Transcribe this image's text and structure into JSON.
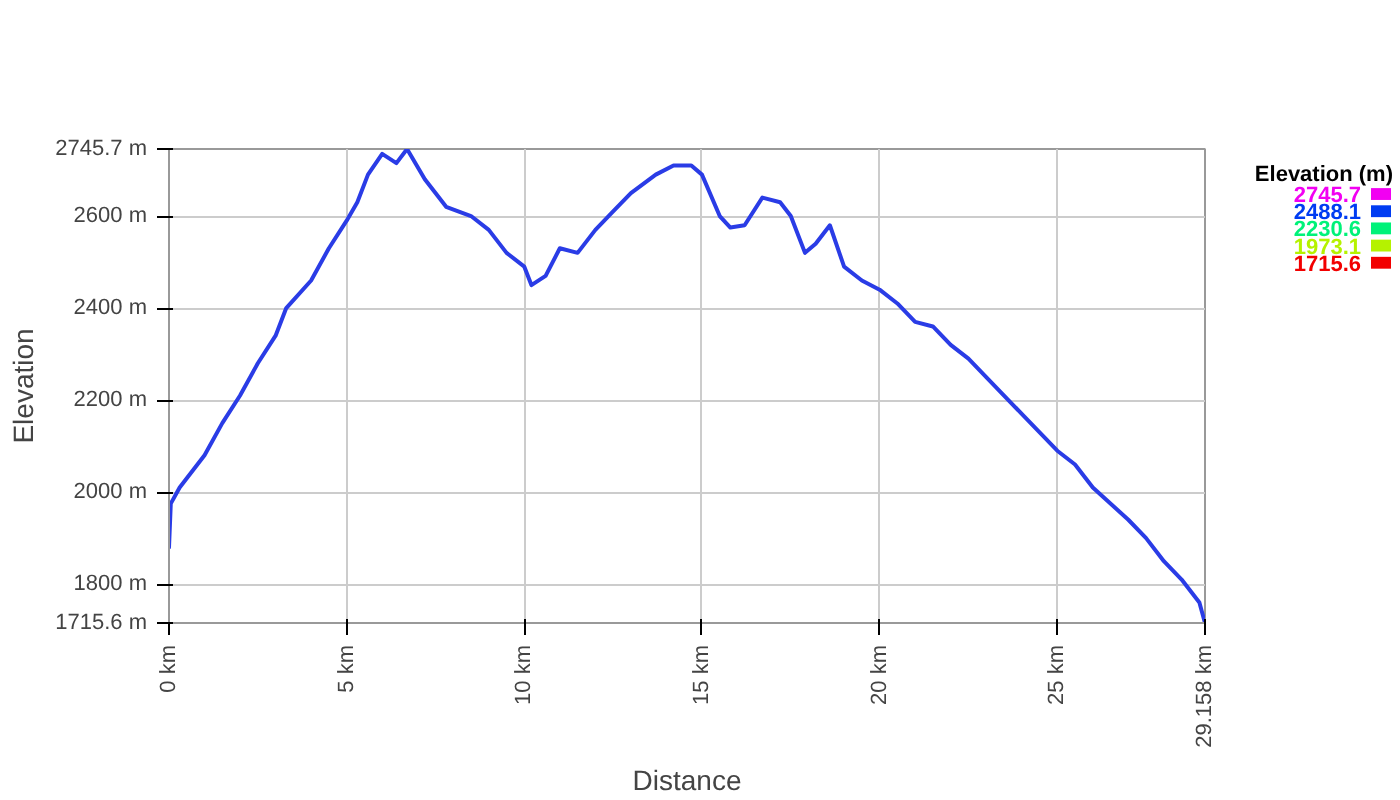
{
  "chart_data": {
    "type": "line",
    "xlabel": "Distance",
    "ylabel": "Elevation",
    "clabel": "Elevation (m)",
    "x": [
      0,
      0.05,
      0.3,
      1,
      1.5,
      2,
      2.5,
      3,
      3.3,
      4,
      4.5,
      5,
      5.3,
      5.6,
      6,
      6.4,
      6.7,
      7.2,
      7.8,
      8.5,
      9,
      9.5,
      10,
      10.2,
      10.6,
      11,
      11.5,
      12,
      12.5,
      13,
      13.7,
      14.2,
      14.7,
      15,
      15.5,
      15.8,
      16.2,
      16.7,
      17.2,
      17.5,
      17.9,
      18.2,
      18.6,
      19,
      19.5,
      20,
      20.5,
      21,
      21.5,
      22,
      22.5,
      23,
      24,
      25,
      25.5,
      26,
      27,
      27.5,
      28,
      28.5,
      29,
      29.158
    ],
    "series": [
      {
        "color": "#2a3ce6",
        "values": [
          1880,
          1975,
          2010,
          2080,
          2150,
          2210,
          2280,
          2340,
          2400,
          2460,
          2530,
          2590,
          2630,
          2690,
          2735,
          2715,
          2745.7,
          2680,
          2620,
          2600,
          2570,
          2520,
          2490,
          2450,
          2470,
          2530,
          2520,
          2570,
          2610,
          2650,
          2690,
          2710,
          2710,
          2690,
          2600,
          2575,
          2580,
          2640,
          2630,
          2600,
          2520,
          2540,
          2580,
          2490,
          2460,
          2440,
          2410,
          2370,
          2360,
          2320,
          2290,
          2250,
          2170,
          2090,
          2060,
          2010,
          1940,
          1900,
          1850,
          1810,
          1760,
          1715.6
        ]
      }
    ],
    "xlim": [
      0,
      29.158
    ],
    "xticks": [
      {
        "value": 0,
        "label": "0 km"
      },
      {
        "value": 5,
        "label": "5 km"
      },
      {
        "value": 10,
        "label": "10 km"
      },
      {
        "value": 15,
        "label": "15 km"
      },
      {
        "value": 20,
        "label": "20 km"
      },
      {
        "value": 25,
        "label": "25 km"
      },
      {
        "value": 29.158,
        "label": "29.158 km"
      }
    ],
    "ylim": [
      1715.6,
      2745.7
    ],
    "yticks": [
      {
        "value": 1715.6,
        "label": "1715.6 m"
      },
      {
        "value": 1800,
        "label": "1800 m"
      },
      {
        "value": 2000,
        "label": "2000 m"
      },
      {
        "value": 2200,
        "label": "2200 m"
      },
      {
        "value": 2400,
        "label": "2400 m"
      },
      {
        "value": 2600,
        "label": "2600 m"
      },
      {
        "value": 2745.7,
        "label": "2745.7 m"
      }
    ],
    "clim": [
      1715.6,
      2745.7
    ],
    "cticks": [
      {
        "value": 2745.7,
        "label": "2745.7"
      },
      {
        "value": 2488.1,
        "label": "2488.1"
      },
      {
        "value": 2230.6,
        "label": "2230.6"
      },
      {
        "value": 1973.1,
        "label": "1973.1"
      },
      {
        "value": 1715.6,
        "label": "1715.6"
      }
    ],
    "grid": true
  }
}
